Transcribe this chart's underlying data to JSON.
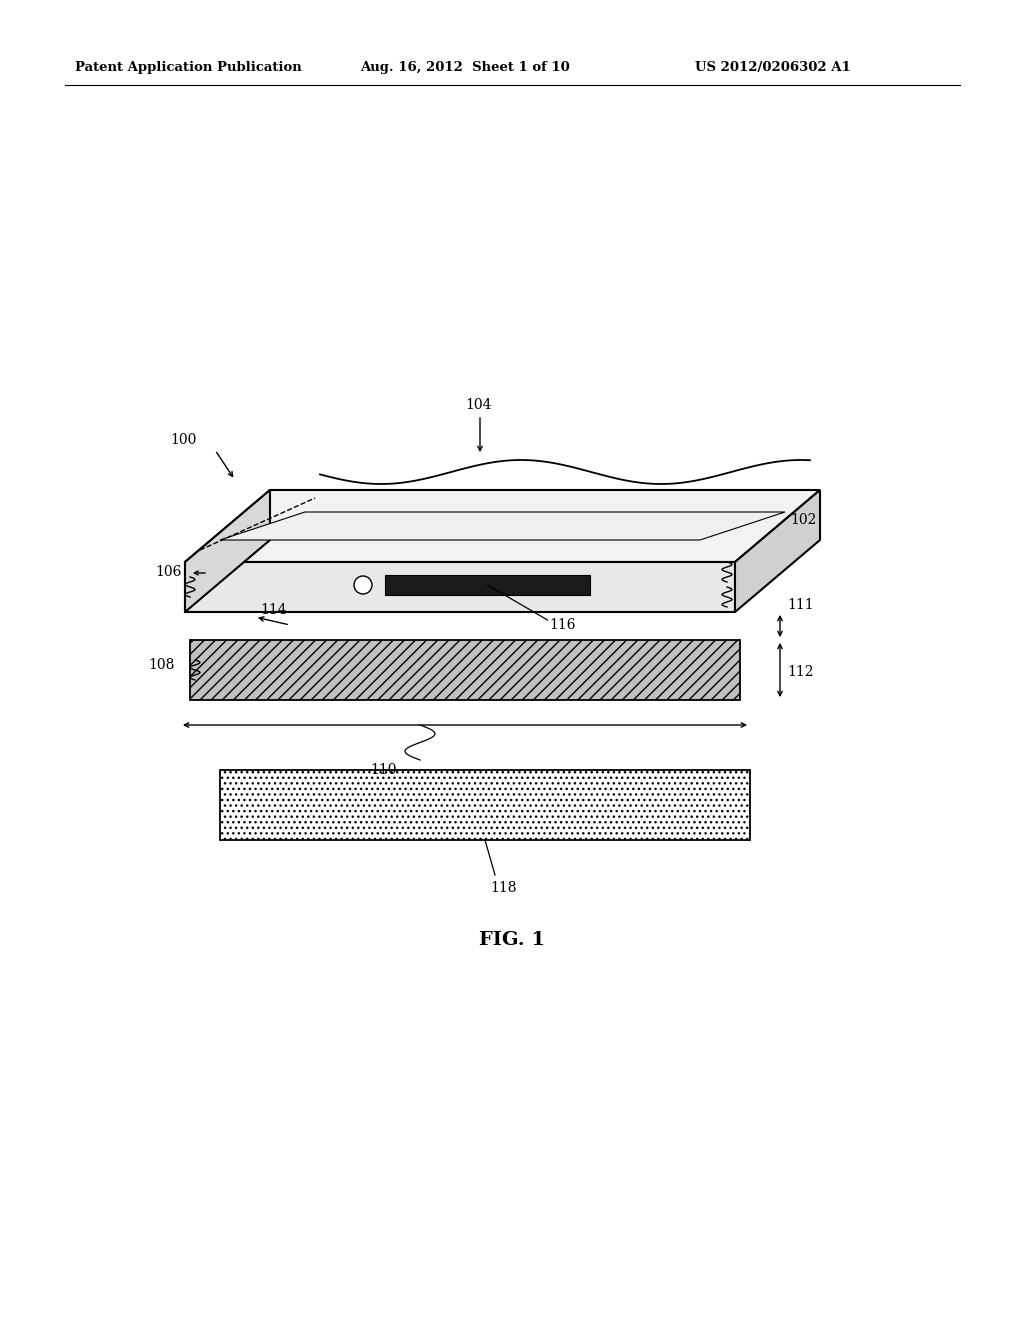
{
  "bg_color": "#ffffff",
  "header_text": "Patent Application Publication",
  "header_date": "Aug. 16, 2012  Sheet 1 of 10",
  "header_patent": "US 2012/0206302 A1",
  "fig_label": "FIG. 1",
  "fig_label_fontsize": 14,
  "header_fontsize": 9.5,
  "label_fontsize": 10
}
